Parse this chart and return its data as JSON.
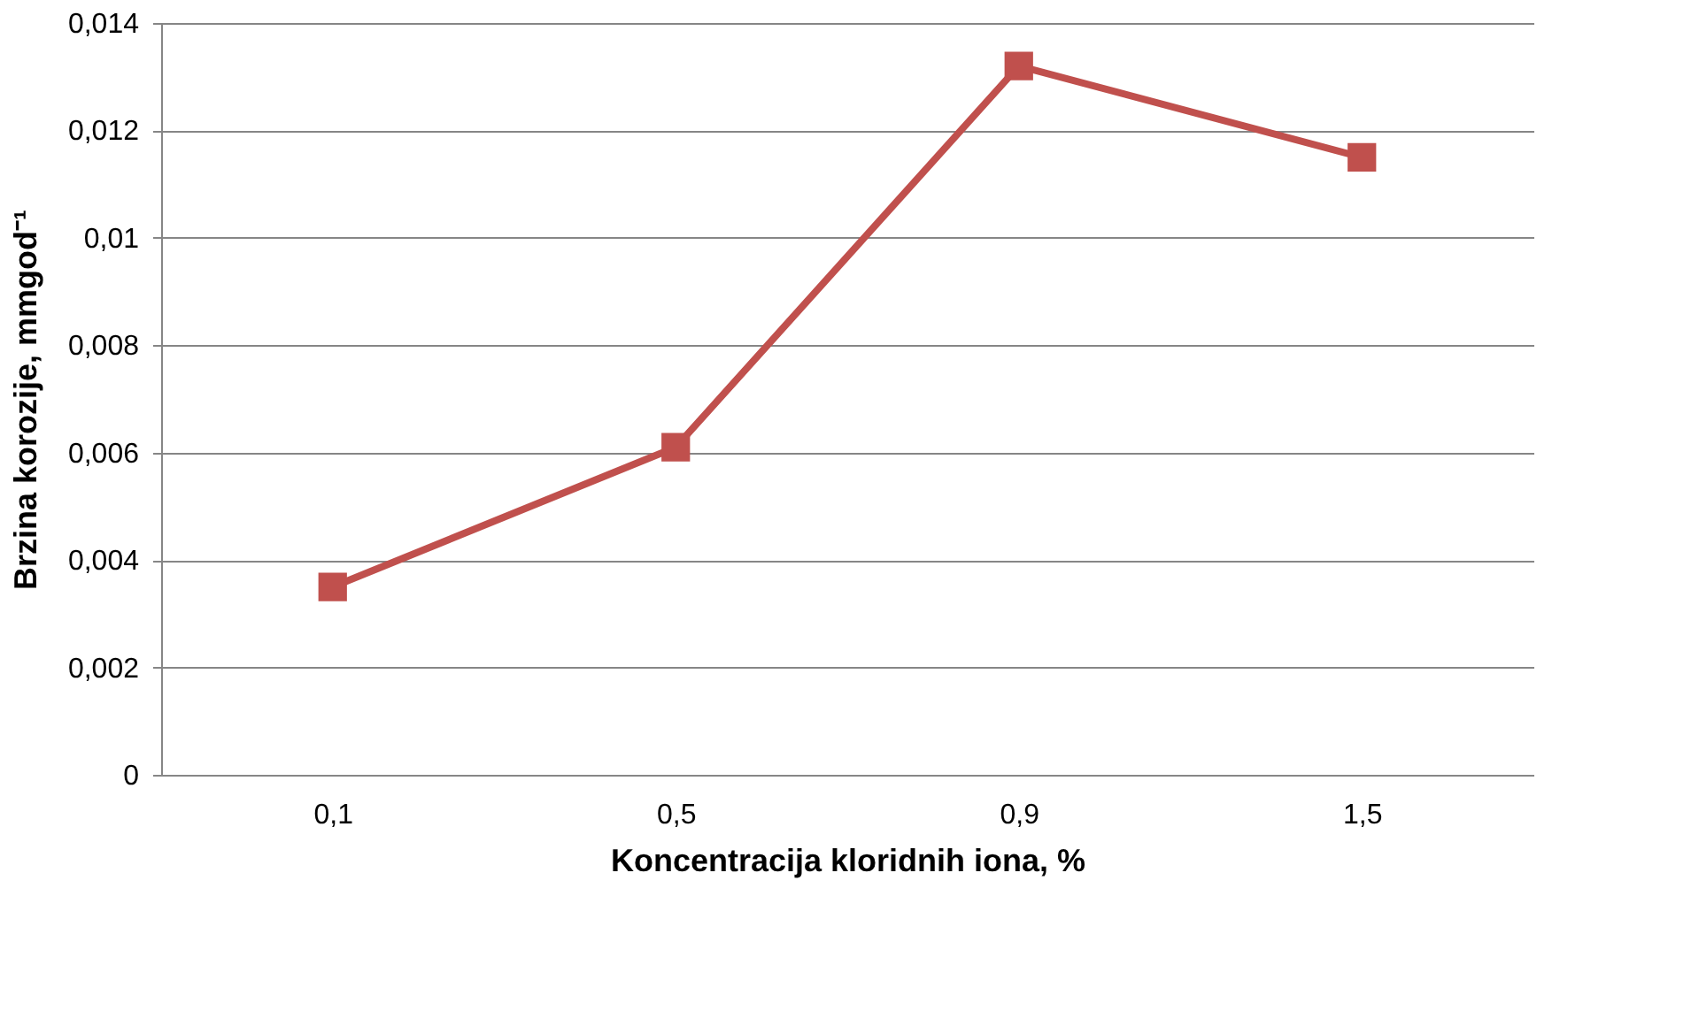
{
  "chart_data": {
    "type": "line",
    "xlabel": "Koncentracija kloridnih iona, %",
    "ylabel": "Brzina korozije, mmgod⁻¹",
    "categories": [
      "0,1",
      "0,5",
      "0,9",
      "1,5"
    ],
    "series": [
      {
        "color": "#c0504d",
        "values": [
          0.0035,
          0.0061,
          0.0132,
          0.0115
        ]
      }
    ],
    "ylim": [
      0,
      0.014
    ],
    "yticks": [
      {
        "value": 0,
        "label": "0"
      },
      {
        "value": 0.002,
        "label": "0,002"
      },
      {
        "value": 0.004,
        "label": "0,004"
      },
      {
        "value": 0.006,
        "label": "0,006"
      },
      {
        "value": 0.008,
        "label": "0,008"
      },
      {
        "value": 0.01,
        "label": "0,01"
      },
      {
        "value": 0.012,
        "label": "0,012"
      },
      {
        "value": 0.014,
        "label": "0,014"
      }
    ],
    "grid": "y",
    "marker": "square",
    "line_style": "solid",
    "legend": false
  }
}
